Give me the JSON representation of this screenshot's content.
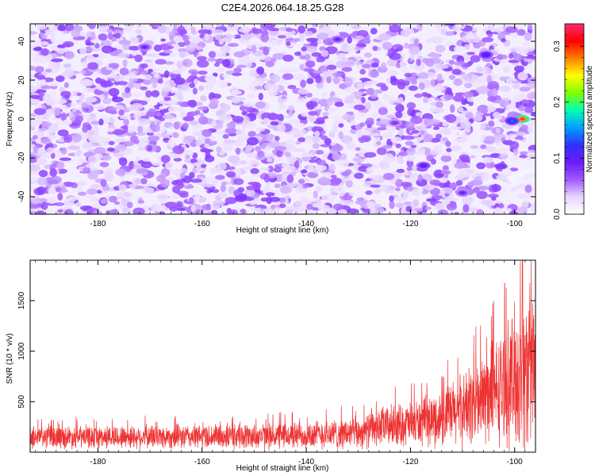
{
  "title": "C2E4.2026.064.18.25.G28",
  "chart_data": [
    {
      "type": "heatmap",
      "xlabel": "Height of straight line (km)",
      "ylabel": "Frequency (Hz)",
      "xlim": [
        -193,
        -96
      ],
      "ylim": [
        -49,
        49
      ],
      "xticks": [
        -180,
        -160,
        -140,
        -120,
        -100
      ],
      "yticks": [
        -40,
        -20,
        0,
        20,
        40
      ],
      "colorbar": {
        "label": "Normalized spectral amplitude",
        "range": [
          0.0,
          0.34
        ],
        "ticks": [
          0.0,
          0.1,
          0.2,
          0.3
        ],
        "colors": [
          "#ffffff",
          "#e6d6ff",
          "#a05aff",
          "#6a1cff",
          "#3030ff",
          "#00a0ff",
          "#00ffb4",
          "#7fff00",
          "#ffff00",
          "#ff8000",
          "#ff0000",
          "#ff2d6f"
        ]
      },
      "hotspots": [
        {
          "x": -98.5,
          "y": 0,
          "value": 0.34
        },
        {
          "x": -100.5,
          "y": -1,
          "value": 0.14
        },
        {
          "x": -105.5,
          "y": 33,
          "value": 0.12
        },
        {
          "x": -117.5,
          "y": -24,
          "value": 0.11
        },
        {
          "x": -171,
          "y": 37,
          "value": 0.09
        },
        {
          "x": -134,
          "y": 41,
          "value": 0.09
        },
        {
          "x": -110,
          "y": -38,
          "value": 0.09
        },
        {
          "x": -123,
          "y": -2,
          "value": 0.08
        }
      ]
    },
    {
      "type": "line",
      "xlabel": "Height of straight line (km)",
      "ylabel": "SNR (10 * v/v)",
      "xlim": [
        -193,
        -96
      ],
      "ylim": [
        0,
        1900
      ],
      "xticks": [
        -180,
        -160,
        -140,
        -120,
        -100
      ],
      "yticks": [
        500,
        1000,
        1500
      ],
      "color": "#ee3333",
      "envelope": [
        {
          "x": -193,
          "base": 150,
          "amp": 130
        },
        {
          "x": -180,
          "base": 150,
          "amp": 130
        },
        {
          "x": -160,
          "base": 155,
          "amp": 140
        },
        {
          "x": -145,
          "base": 160,
          "amp": 150
        },
        {
          "x": -130,
          "base": 190,
          "amp": 180
        },
        {
          "x": -125,
          "base": 260,
          "amp": 230
        },
        {
          "x": -120,
          "base": 280,
          "amp": 250
        },
        {
          "x": -115,
          "base": 320,
          "amp": 300
        },
        {
          "x": -110,
          "base": 420,
          "amp": 420
        },
        {
          "x": -105,
          "base": 560,
          "amp": 560
        },
        {
          "x": -102,
          "base": 650,
          "amp": 650
        },
        {
          "x": -99,
          "base": 780,
          "amp": 900
        },
        {
          "x": -96,
          "base": 850,
          "amp": 950
        }
      ],
      "max_point": {
        "x": -98.5,
        "y": 1900
      }
    }
  ]
}
